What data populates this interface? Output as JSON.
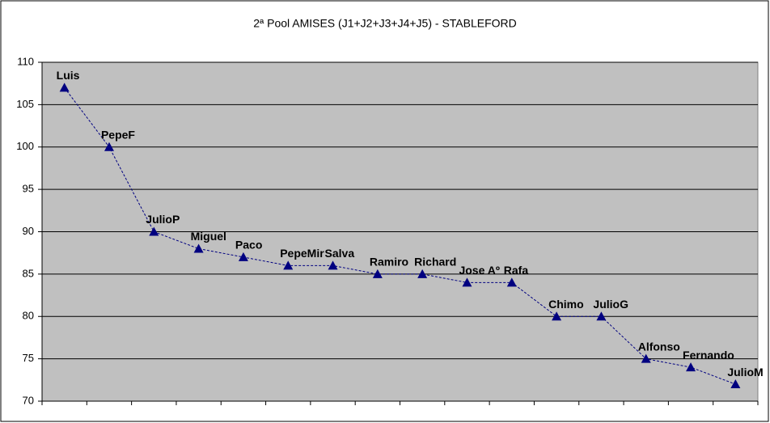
{
  "chart_data": {
    "type": "line",
    "title": "2ª Pool AMISES (J1+J2+J3+J4+J5) - STABLEFORD",
    "categories": [
      "Luis",
      "PepeF",
      "JulioP",
      "Miguel",
      "Paco",
      "PepeMir",
      "Salva",
      "Ramiro",
      "Richard",
      "Jose Aº",
      "Rafa",
      "Chimo",
      "JulioG",
      "Alfonso",
      "Fernando",
      "JulioM"
    ],
    "values": [
      107,
      100,
      90,
      88,
      87,
      86,
      86,
      85,
      85,
      84,
      84,
      80,
      80,
      75,
      74,
      72
    ],
    "color": "#000080",
    "ylim": [
      70,
      110
    ],
    "yticks": [
      70,
      75,
      80,
      85,
      90,
      95,
      100,
      105,
      110
    ],
    "grid": true
  }
}
